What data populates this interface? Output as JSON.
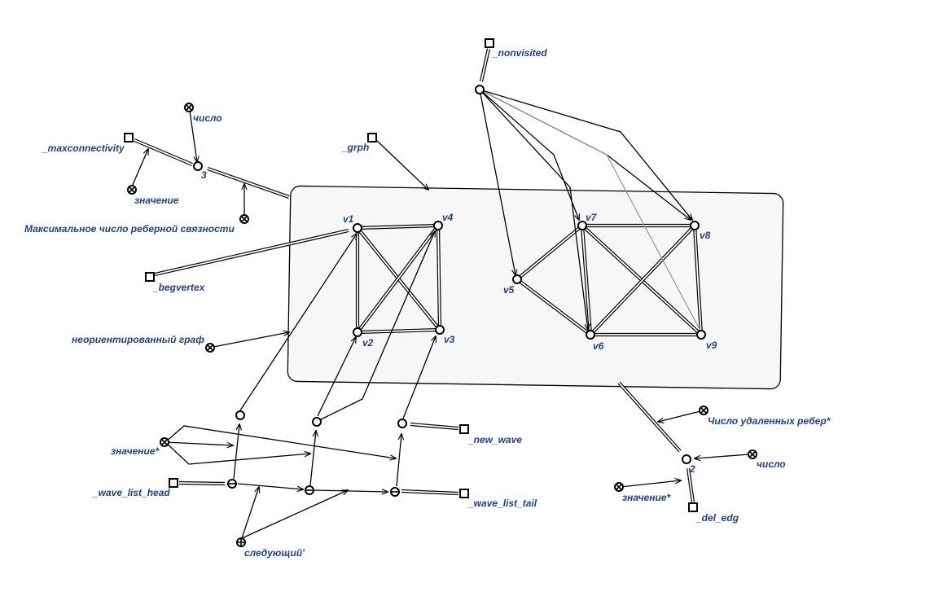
{
  "diagram": {
    "labels": {
      "number_top": "число",
      "maxconnectivity": "_maxconnectivity",
      "value_left": "значение",
      "three": "3",
      "max_edge_connectivity": "Максимальное число реберной связности",
      "grph": "_grph",
      "nonvisited": "_nonvisited",
      "begvertex": "_begvertex",
      "undirected_graph": "неориентированный граф",
      "v1": "v1",
      "v2": "v2",
      "v3": "v3",
      "v4": "v4",
      "v5": "v5",
      "v6": "v6",
      "v7": "v7",
      "v8": "v8",
      "v9": "v9",
      "value_star_left": "значение*",
      "wave_list_head": "_wave_list_head",
      "new_wave": "_new_wave",
      "wave_list_tail": "_wave_list_tail",
      "next": "следующий'",
      "removed_edges": "Число удаленных ребер*",
      "number_right": "число",
      "two": "2",
      "value_star_right": "значение*",
      "del_edg": "_del_edg"
    }
  }
}
